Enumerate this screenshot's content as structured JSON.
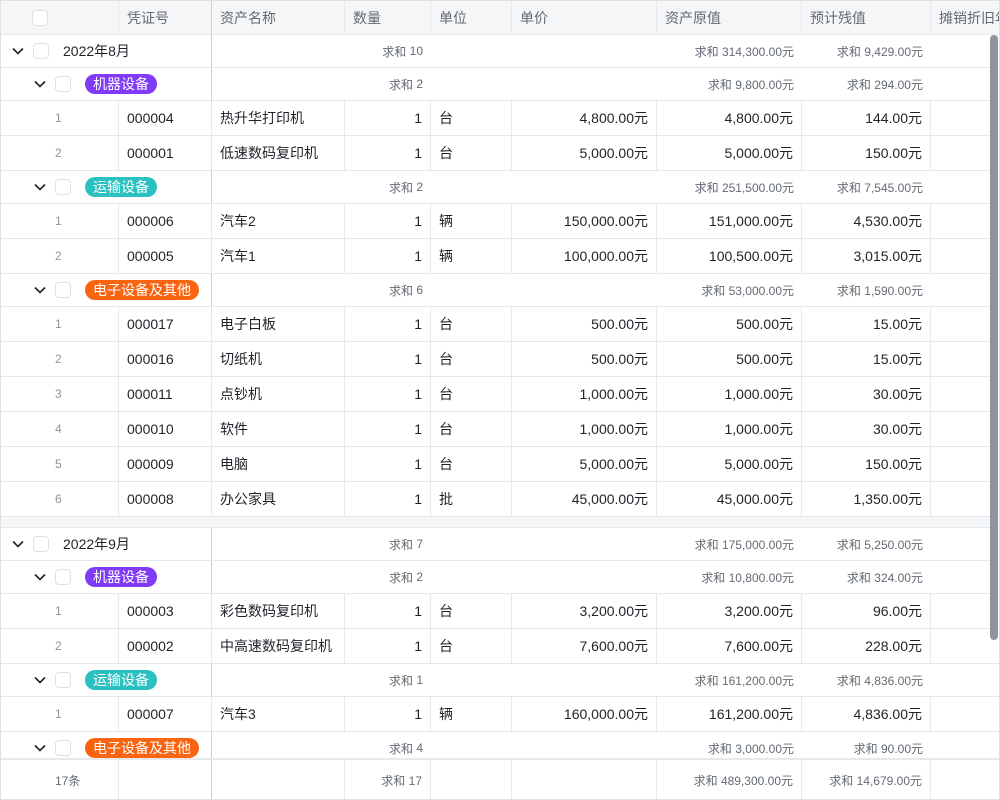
{
  "columns": [
    "",
    "凭证号",
    "资产名称",
    "数量",
    "单位",
    "单价",
    "资产原值",
    "预计残值",
    "摊销折旧年"
  ],
  "sum_label": "求和",
  "groups": [
    {
      "label": "2022年8月",
      "count": "10",
      "sum_original": "314,300.00元",
      "sum_residual": "9,429.00元",
      "subgroups": [
        {
          "tag": "机器设备",
          "color": "#7f3bf5",
          "count": "2",
          "sum_original": "9,800.00元",
          "sum_residual": "294.00元",
          "rows": [
            {
              "idx": "1",
              "voucher": "000004",
              "name": "热升华打印机",
              "qty": "1",
              "unit": "台",
              "price": "4,800.00元",
              "original": "4,800.00元",
              "residual": "144.00元"
            },
            {
              "idx": "2",
              "voucher": "000001",
              "name": "低速数码复印机",
              "qty": "1",
              "unit": "台",
              "price": "5,000.00元",
              "original": "5,000.00元",
              "residual": "150.00元"
            }
          ]
        },
        {
          "tag": "运输设备",
          "color": "#2cc1c1",
          "count": "2",
          "sum_original": "251,500.00元",
          "sum_residual": "7,545.00元",
          "rows": [
            {
              "idx": "1",
              "voucher": "000006",
              "name": "汽车2",
              "qty": "1",
              "unit": "辆",
              "price": "150,000.00元",
              "original": "151,000.00元",
              "residual": "4,530.00元"
            },
            {
              "idx": "2",
              "voucher": "000005",
              "name": "汽车1",
              "qty": "1",
              "unit": "辆",
              "price": "100,000.00元",
              "original": "100,500.00元",
              "residual": "3,015.00元"
            }
          ]
        },
        {
          "tag": "电子设备及其他",
          "color": "#fa6410",
          "count": "6",
          "sum_original": "53,000.00元",
          "sum_residual": "1,590.00元",
          "rows": [
            {
              "idx": "1",
              "voucher": "000017",
              "name": "电子白板",
              "qty": "1",
              "unit": "台",
              "price": "500.00元",
              "original": "500.00元",
              "residual": "15.00元"
            },
            {
              "idx": "2",
              "voucher": "000016",
              "name": "切纸机",
              "qty": "1",
              "unit": "台",
              "price": "500.00元",
              "original": "500.00元",
              "residual": "15.00元"
            },
            {
              "idx": "3",
              "voucher": "000011",
              "name": "点钞机",
              "qty": "1",
              "unit": "台",
              "price": "1,000.00元",
              "original": "1,000.00元",
              "residual": "30.00元"
            },
            {
              "idx": "4",
              "voucher": "000010",
              "name": "软件",
              "qty": "1",
              "unit": "台",
              "price": "1,000.00元",
              "original": "1,000.00元",
              "residual": "30.00元"
            },
            {
              "idx": "5",
              "voucher": "000009",
              "name": "电脑",
              "qty": "1",
              "unit": "台",
              "price": "5,000.00元",
              "original": "5,000.00元",
              "residual": "150.00元"
            },
            {
              "idx": "6",
              "voucher": "000008",
              "name": "办公家具",
              "qty": "1",
              "unit": "批",
              "price": "45,000.00元",
              "original": "45,000.00元",
              "residual": "1,350.00元"
            }
          ]
        }
      ]
    },
    {
      "label": "2022年9月",
      "count": "7",
      "sum_original": "175,000.00元",
      "sum_residual": "5,250.00元",
      "subgroups": [
        {
          "tag": "机器设备",
          "color": "#7f3bf5",
          "count": "2",
          "sum_original": "10,800.00元",
          "sum_residual": "324.00元",
          "rows": [
            {
              "idx": "1",
              "voucher": "000003",
              "name": "彩色数码复印机",
              "qty": "1",
              "unit": "台",
              "price": "3,200.00元",
              "original": "3,200.00元",
              "residual": "96.00元"
            },
            {
              "idx": "2",
              "voucher": "000002",
              "name": "中高速数码复印机",
              "qty": "1",
              "unit": "台",
              "price": "7,600.00元",
              "original": "7,600.00元",
              "residual": "228.00元"
            }
          ]
        },
        {
          "tag": "运输设备",
          "color": "#2cc1c1",
          "count": "1",
          "sum_original": "161,200.00元",
          "sum_residual": "4,836.00元",
          "rows": [
            {
              "idx": "1",
              "voucher": "000007",
              "name": "汽车3",
              "qty": "1",
              "unit": "辆",
              "price": "160,000.00元",
              "original": "161,200.00元",
              "residual": "4,836.00元"
            }
          ]
        },
        {
          "tag": "电子设备及其他",
          "color": "#fa6410",
          "count": "4",
          "sum_original": "3,000.00元",
          "sum_residual": "90.00元",
          "rows": []
        }
      ]
    }
  ],
  "footer": {
    "record_count": "17条",
    "sum_qty": "17",
    "sum_original": "489,300.00元",
    "sum_residual": "14,679.00元"
  }
}
